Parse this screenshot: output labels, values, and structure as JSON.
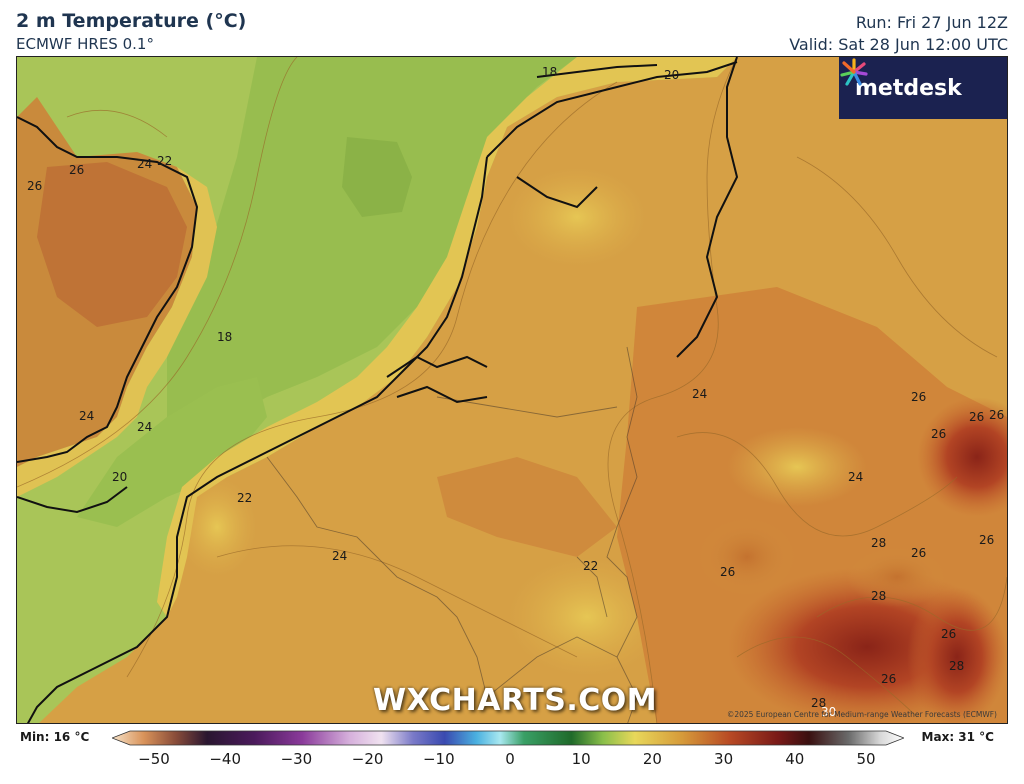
{
  "header": {
    "title": "2 m Temperature (°C)",
    "model": "ECMWF HRES 0.1°",
    "run": "Run: Fri 27 Jun 12Z",
    "valid": "Valid: Sat 28 Jun 12:00 UTC"
  },
  "logo": {
    "text": "metdesk",
    "icon": "burst-icon"
  },
  "watermark": "WXCHARTS.COM",
  "copyright": "©2025 European Centre for Medium-range Weather Forecasts (ECMWF)",
  "contour_labels": [
    "18",
    "20",
    "26",
    "24",
    "22",
    "26",
    "18",
    "24",
    "24",
    "20",
    "22",
    "24",
    "24",
    "22",
    "26",
    "26",
    "26",
    "26",
    "24",
    "26",
    "28",
    "26",
    "26",
    "28",
    "26",
    "28",
    "26",
    "28",
    "30"
  ],
  "colorbar": {
    "min_label": "Min: 16 °C",
    "max_label": "Max: 31 °C",
    "ticks": [
      "−50",
      "−40",
      "−30",
      "−20",
      "−10",
      "0",
      "10",
      "20",
      "30",
      "40",
      "50"
    ],
    "range": [
      -50,
      50
    ]
  },
  "colors": {
    "sea_cool": "#8fbf4e",
    "sea_mid": "#a6c456",
    "land_warm": "#d8a24a",
    "land_hot": "#c4652c",
    "land_peak": "#8e2a1a",
    "logo_bg": "#1b2250"
  }
}
